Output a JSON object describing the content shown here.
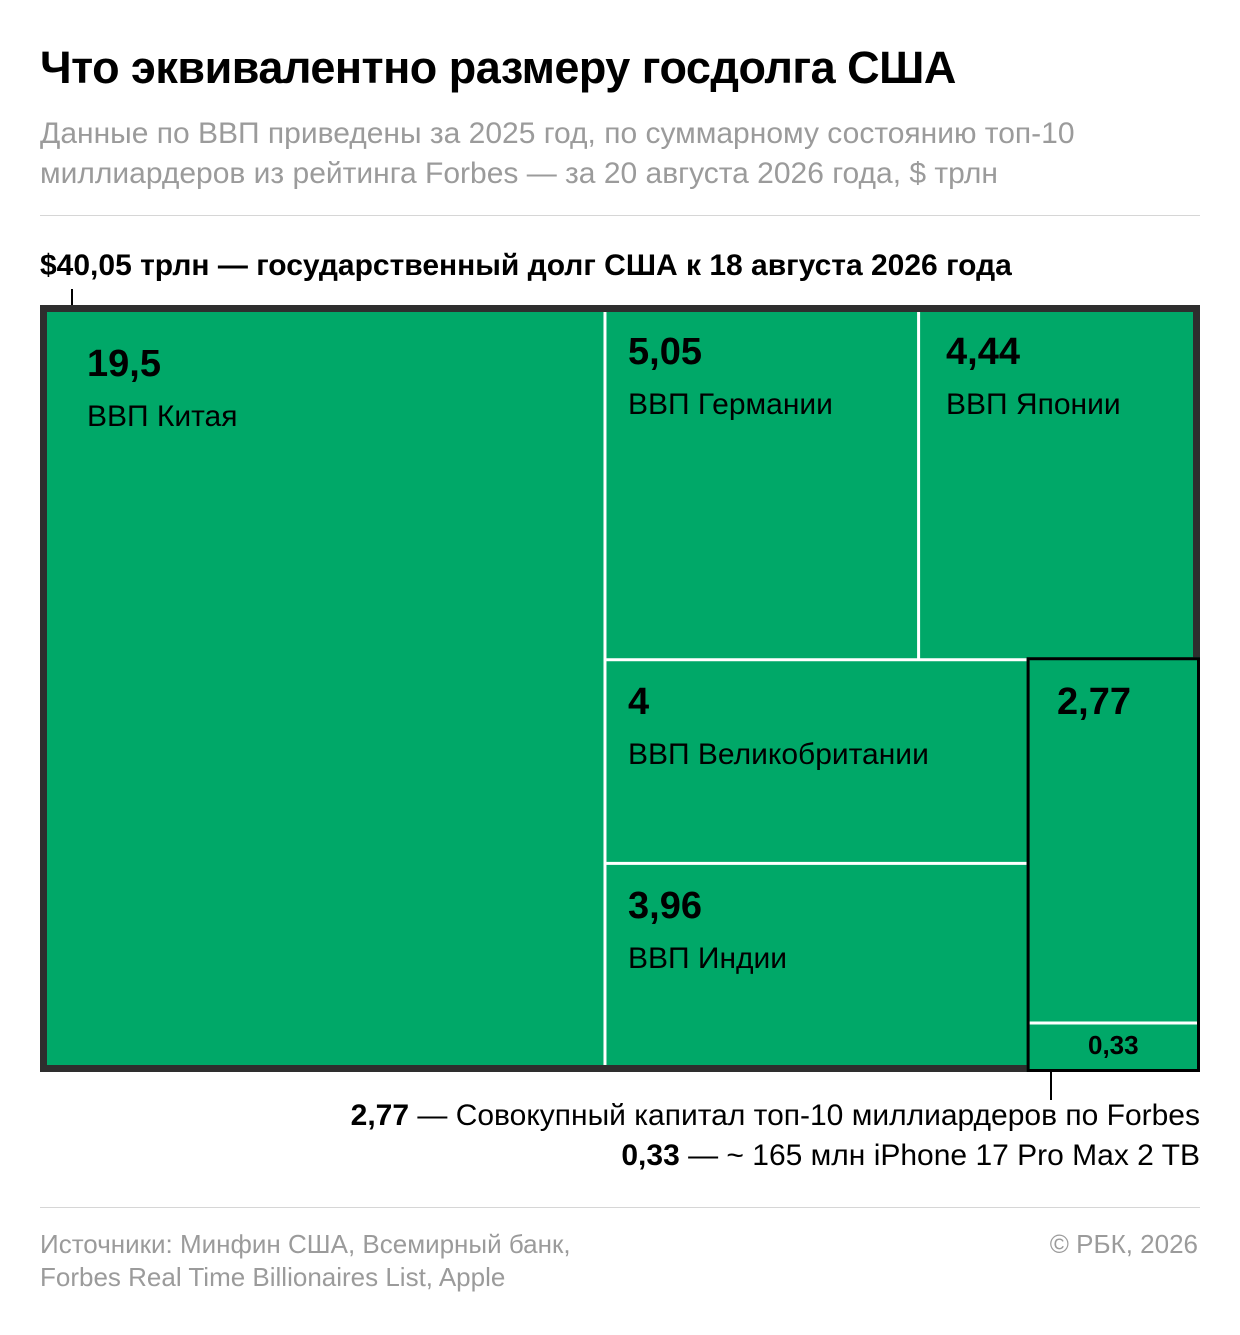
{
  "title": "Что эквивалентно размеру госдолга США",
  "subtitle_line1": "Данные по ВВП приведены за 2025 год, по суммарному состоянию топ-10",
  "subtitle_line2": "миллиардеров из рейтинга Forbes — за 20 августа 2026 года, $ трлн",
  "headline": "$40,05 трлн — государственный долг США к 18 августа 2026 года",
  "colors": {
    "fill": "#00a868",
    "frame": "#2e2e2e",
    "separator": "#ffffff",
    "muted_text": "#9b9b9b"
  },
  "chart_data": {
    "type": "treemap",
    "total": {
      "value": 40.05,
      "label": "$40,05 трлн — государственный долг США к 18 августа 2026 года"
    },
    "items": [
      {
        "id": "china",
        "value": 19.5,
        "value_label": "19,5",
        "name": "ВВП Китая"
      },
      {
        "id": "germany",
        "value": 5.05,
        "value_label": "5,05",
        "name": "ВВП Германии"
      },
      {
        "id": "japan",
        "value": 4.44,
        "value_label": "4,44",
        "name": "ВВП Японии"
      },
      {
        "id": "uk",
        "value": 4,
        "value_label": "4",
        "name": "ВВП Великобритании"
      },
      {
        "id": "india",
        "value": 3.96,
        "value_label": "3,96",
        "name": "ВВП Индии"
      },
      {
        "id": "billionaires",
        "value": 2.77,
        "value_label": "2,77",
        "name": ""
      },
      {
        "id": "iphones",
        "value": 0.33,
        "value_label": "0,33",
        "name": ""
      }
    ]
  },
  "footnotes": [
    {
      "value": "2,77",
      "text": " — Совокупный капитал топ-10 миллиардеров по Forbes"
    },
    {
      "value": "0,33",
      "text": " — ~ 165 млн iPhone 17 Pro Max 2 TB"
    }
  ],
  "sources_line1": "Источники: Минфин США, Всемирный банк,",
  "sources_line2": "Forbes Real Time Billionaires List, Apple",
  "copyright": "© РБК, 2026"
}
